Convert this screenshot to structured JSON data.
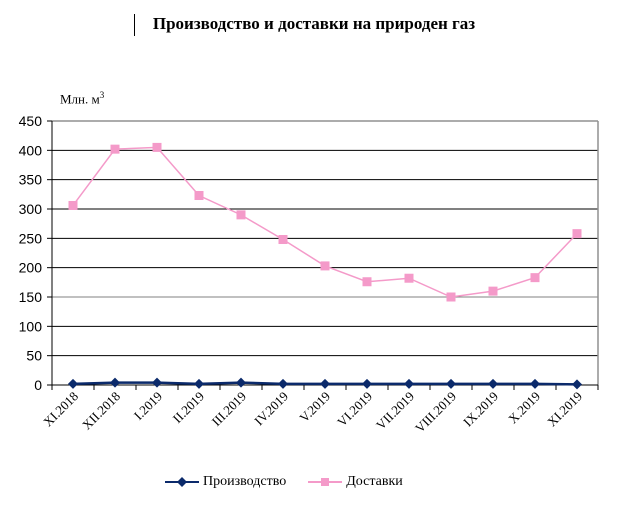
{
  "chart_data": {
    "type": "line",
    "title": "Производство и доставки на природен газ",
    "ylabel": "Млн. м3",
    "unit_label": "Млн. м",
    "unit_sup": "3",
    "xlabel": "",
    "ylim": [
      0,
      450
    ],
    "yticks": [
      0,
      50,
      100,
      150,
      200,
      250,
      300,
      350,
      400,
      450
    ],
    "grid": true,
    "legend_position": "bottom",
    "categories": [
      "XI.2018",
      "XII.2018",
      "I.2019",
      "II.2019",
      "III.2019",
      "IV.2019",
      "V.2019",
      "VI.2019",
      "VII.2019",
      "VIII.2019",
      "IX.2019",
      "X.2019",
      "XI.2019"
    ],
    "series": [
      {
        "name": "Производство",
        "color": "#0b2a6b",
        "marker": "diamond",
        "values": [
          2,
          4,
          4,
          2,
          4,
          2,
          2,
          2,
          2,
          2,
          2,
          2,
          1
        ]
      },
      {
        "name": "Доставки",
        "color": "#f49ac9",
        "marker": "square",
        "values": [
          306,
          402,
          405,
          323,
          290,
          248,
          203,
          176,
          182,
          150,
          160,
          183,
          258
        ]
      }
    ]
  },
  "legend": {
    "items": [
      {
        "label": "Производство"
      },
      {
        "label": "Доставки"
      }
    ]
  }
}
